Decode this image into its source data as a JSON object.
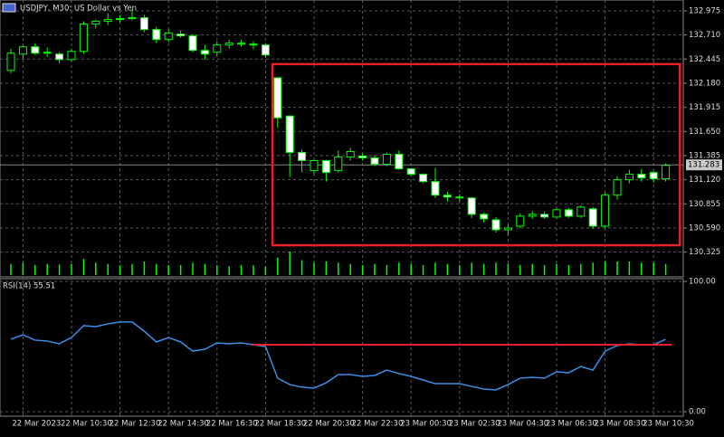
{
  "chart_data": [
    {
      "type": "candlestick",
      "title": "USDJPY, M30:  US Dollar vs Yen",
      "up_color": "#00ff00",
      "down_color": "#ffffff",
      "wick_color": "#00ff00",
      "categories": [
        null,
        "22 Mar 2023",
        null,
        null,
        null,
        "22 Mar 10:30",
        null,
        null,
        null,
        "22 Mar 12:30",
        null,
        null,
        null,
        "22 Mar 14:30",
        null,
        null,
        null,
        "22 Mar 16:30",
        null,
        null,
        null,
        "22 Mar 18:30",
        null,
        null,
        null,
        "22 Mar 20:30",
        null,
        null,
        null,
        "22 Mar 22:30",
        null,
        null,
        null,
        "23 Mar 00:30",
        null,
        null,
        null,
        "23 Mar 02:30",
        null,
        null,
        null,
        "23 Mar 04:30",
        null,
        null,
        null,
        "23 Mar 06:30",
        null,
        null,
        null,
        "23 Mar 08:30",
        null,
        null,
        null,
        "23 Mar 10:30",
        null
      ],
      "open": [
        132.32,
        132.5,
        132.58,
        132.51,
        132.5,
        132.44,
        132.53,
        132.83,
        132.86,
        132.88,
        132.89,
        132.9,
        132.77,
        132.66,
        132.72,
        132.7,
        132.54,
        132.52,
        132.6,
        132.62,
        132.61,
        132.6,
        132.24,
        131.82,
        131.42,
        131.22,
        131.33,
        131.22,
        131.37,
        131.38,
        131.36,
        131.29,
        131.4,
        131.24,
        131.18,
        131.1,
        130.95,
        130.93,
        130.92,
        130.74,
        130.68,
        130.57,
        130.61,
        130.72,
        130.74,
        130.71,
        130.79,
        130.72,
        130.8,
        130.61,
        130.95,
        131.12,
        131.18,
        131.2,
        131.13
      ],
      "high": [
        132.56,
        132.6,
        132.62,
        132.57,
        132.52,
        132.56,
        132.86,
        132.88,
        132.95,
        132.93,
        132.99,
        132.93,
        132.8,
        132.77,
        132.76,
        132.72,
        132.6,
        132.64,
        132.66,
        132.66,
        132.64,
        132.62,
        132.24,
        131.82,
        131.45,
        131.34,
        131.34,
        131.44,
        131.47,
        131.41,
        131.39,
        131.42,
        131.44,
        131.25,
        131.19,
        131.25,
        130.99,
        130.96,
        130.93,
        130.76,
        130.71,
        130.63,
        130.75,
        130.78,
        130.77,
        130.81,
        130.81,
        130.84,
        130.82,
        130.98,
        131.16,
        131.23,
        131.24,
        131.22,
        131.3
      ],
      "low": [
        132.29,
        132.45,
        132.49,
        132.47,
        132.4,
        132.42,
        132.5,
        132.78,
        132.82,
        132.85,
        132.87,
        132.74,
        132.62,
        132.63,
        132.68,
        132.52,
        132.44,
        132.48,
        132.56,
        132.58,
        132.55,
        132.46,
        131.69,
        131.15,
        131.2,
        131.18,
        131.1,
        131.2,
        131.33,
        131.33,
        131.27,
        131.27,
        131.23,
        131.16,
        131.08,
        130.92,
        130.88,
        130.88,
        130.7,
        130.65,
        130.54,
        130.51,
        130.59,
        130.69,
        130.69,
        130.7,
        130.7,
        130.7,
        130.58,
        130.59,
        130.9,
        131.08,
        131.1,
        131.09,
        131.1
      ],
      "close": [
        132.51,
        132.58,
        132.51,
        132.52,
        132.44,
        132.53,
        132.83,
        132.86,
        132.88,
        132.89,
        132.9,
        132.77,
        132.66,
        132.73,
        132.7,
        132.54,
        132.5,
        132.6,
        132.62,
        132.61,
        132.6,
        132.49,
        131.8,
        131.42,
        131.33,
        131.33,
        131.2,
        131.37,
        131.43,
        131.36,
        131.29,
        131.4,
        131.24,
        131.18,
        131.1,
        130.95,
        130.93,
        130.92,
        130.74,
        130.69,
        130.57,
        130.59,
        130.72,
        130.74,
        130.71,
        130.79,
        130.72,
        130.82,
        130.61,
        130.95,
        131.12,
        131.18,
        131.14,
        131.13,
        131.28
      ],
      "volume": [
        900,
        1000,
        800,
        900,
        850,
        900,
        1300,
        1000,
        900,
        800,
        900,
        1100,
        900,
        800,
        800,
        1000,
        900,
        800,
        700,
        800,
        800,
        700,
        1400,
        1900,
        1200,
        1000,
        1100,
        1000,
        900,
        800,
        900,
        800,
        1000,
        900,
        800,
        1000,
        900,
        800,
        1000,
        900,
        1000,
        900,
        800,
        900,
        800,
        900,
        800,
        900,
        1000,
        1100,
        1100,
        1100,
        1000,
        1000,
        900
      ],
      "ylim": [
        130.063,
        133.094
      ],
      "yticks": [
        132.975,
        {
          "value": 132.71,
          "label": "132.710"
        },
        132.445,
        {
          "value": 132.18,
          "label": "132.180"
        },
        131.915,
        {
          "value": 131.65,
          "label": "131.650"
        },
        131.385,
        {
          "value": 131.12,
          "label": "131.120"
        },
        130.855,
        {
          "value": 130.59,
          "label": "130.590"
        },
        130.325
      ],
      "current_price": 131.283,
      "box": {
        "top": 132.39,
        "bottom": 130.4,
        "color": "#e8202a"
      }
    },
    {
      "type": "line",
      "title": "RSI(14) 55.51",
      "color": "#3a8ee6",
      "values": [
        55.6,
        59.0,
        54.9,
        54.2,
        52.1,
        56.9,
        66.0,
        65.3,
        67.4,
        68.8,
        68.8,
        61.8,
        53.5,
        56.9,
        53.5,
        46.5,
        47.9,
        52.8,
        52.1,
        52.8,
        51.4,
        50.0,
        25.7,
        20.8,
        18.8,
        18.1,
        22.2,
        28.5,
        28.5,
        27.1,
        27.8,
        31.9,
        29.2,
        27.1,
        24.3,
        21.5,
        21.5,
        21.5,
        19.4,
        17.4,
        16.7,
        20.8,
        25.7,
        26.4,
        25.7,
        30.6,
        29.9,
        34.7,
        31.9,
        46.5,
        50.7,
        52.1,
        51.4,
        51.4,
        55.5
      ],
      "ylim": [
        0,
        100
      ],
      "yticks": [
        {
          "value": 100,
          "label": "100.00"
        },
        {
          "value": 0,
          "label": "0.00"
        }
      ],
      "level": {
        "value": 51.4,
        "color": "#e8202a"
      }
    }
  ]
}
